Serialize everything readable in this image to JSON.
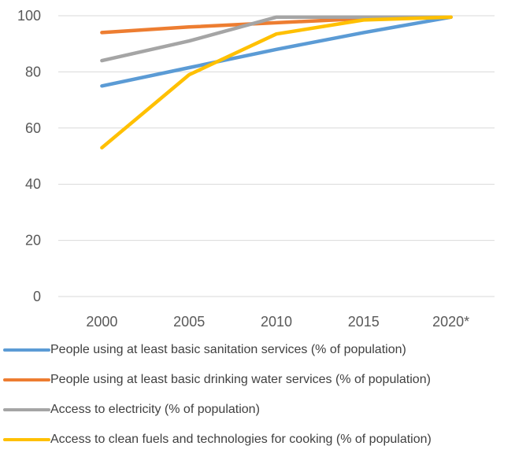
{
  "chart_data": {
    "type": "line",
    "title": "",
    "xlabel": "",
    "ylabel": "",
    "categories": [
      "2000",
      "2005",
      "2010",
      "2015",
      "2020*"
    ],
    "ylim": [
      0,
      100
    ],
    "yticks": [
      0,
      20,
      40,
      60,
      80,
      100
    ],
    "grid": true,
    "legend_position": "bottom",
    "series": [
      {
        "name": "People using at least basic sanitation services (% of population)",
        "color": "#5B9BD5",
        "values": [
          75,
          81.5,
          88,
          94,
          99.5
        ]
      },
      {
        "name": "People using at least basic drinking water services (% of population)",
        "color": "#ED7D31",
        "values": [
          94,
          96,
          97.5,
          99,
          99.5
        ]
      },
      {
        "name": "Access to electricity (% of population)",
        "color": "#A5A5A5",
        "values": [
          84,
          91,
          99.5,
          99.5,
          99.5
        ]
      },
      {
        "name": "Access to clean fuels and technologies for cooking (% of population)",
        "color": "#FFC000",
        "values": [
          53,
          79,
          93.5,
          98.5,
          99.5
        ]
      }
    ]
  }
}
